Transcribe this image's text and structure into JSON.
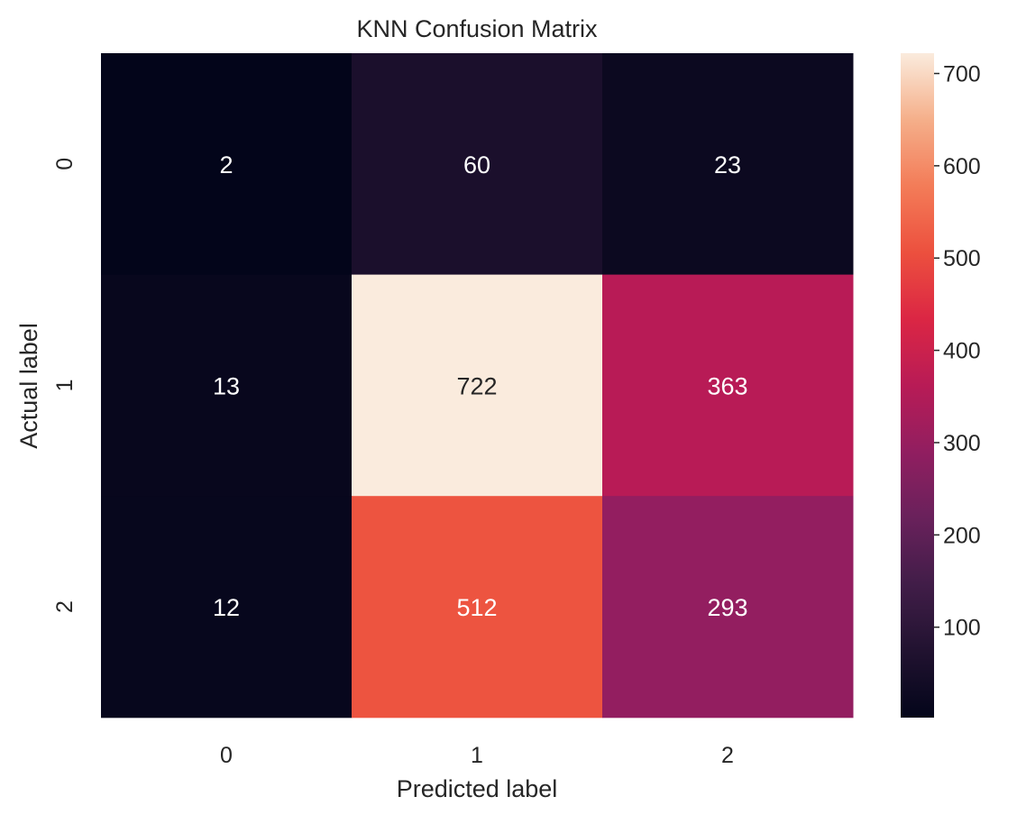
{
  "chart_data": {
    "type": "heatmap",
    "title": "KNN Confusion Matrix",
    "xlabel": "Predicted label",
    "ylabel": "Actual label",
    "x_categories": [
      "0",
      "1",
      "2"
    ],
    "y_categories": [
      "0",
      "1",
      "2"
    ],
    "values": [
      [
        2,
        60,
        23
      ],
      [
        13,
        722,
        363
      ],
      [
        12,
        512,
        293
      ]
    ],
    "colormap": "rocket",
    "colorbar": {
      "range": [
        2,
        722
      ],
      "ticks": [
        100,
        200,
        300,
        400,
        500,
        600,
        700
      ]
    },
    "annotation_colors": {
      "dark_text": "#262626",
      "light_text": "#ffffff"
    }
  }
}
